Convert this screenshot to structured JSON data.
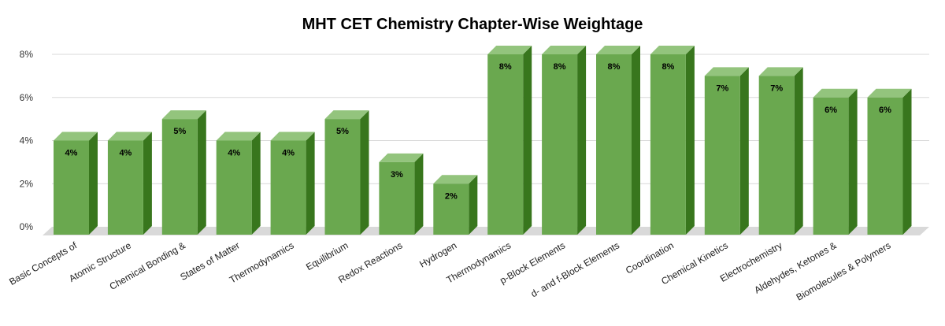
{
  "chart_data": {
    "type": "bar",
    "title": "MHT CET Chemistry Chapter-Wise Weightage",
    "xlabel": "",
    "ylabel": "",
    "ylim": [
      0,
      8
    ],
    "yticks": [
      "0%",
      "2%",
      "4%",
      "6%",
      "8%"
    ],
    "grid": true,
    "legend": "none",
    "categories": [
      "Basic Concepts of",
      "Atomic Structure",
      "Chemical Bonding &",
      "States of Matter",
      "Thermodynamics",
      "Equilibrium",
      "Redox Reactions",
      "Hydrogen",
      "Thermodynamics",
      "p-Block Elements",
      "d- and f-Block Elements",
      "Coordination",
      "Chemical Kinetics",
      "Electrochemistry",
      "Aldehydes, Ketones &",
      "Biomolecules & Polymers"
    ],
    "values": [
      4,
      4,
      5,
      4,
      4,
      5,
      3,
      2,
      8,
      8,
      8,
      8,
      7,
      7,
      6,
      6
    ],
    "data_labels": [
      "4%",
      "4%",
      "5%",
      "4%",
      "4%",
      "5%",
      "3%",
      "2%",
      "8%",
      "8%",
      "8%",
      "8%",
      "7%",
      "7%",
      "6%",
      "6%"
    ],
    "colors": {
      "bar_front": "#6aa84f",
      "bar_top": "#93c47d",
      "bar_side": "#38761d",
      "floor": "#d9d9d9",
      "grid": "#d9d9d9"
    }
  }
}
